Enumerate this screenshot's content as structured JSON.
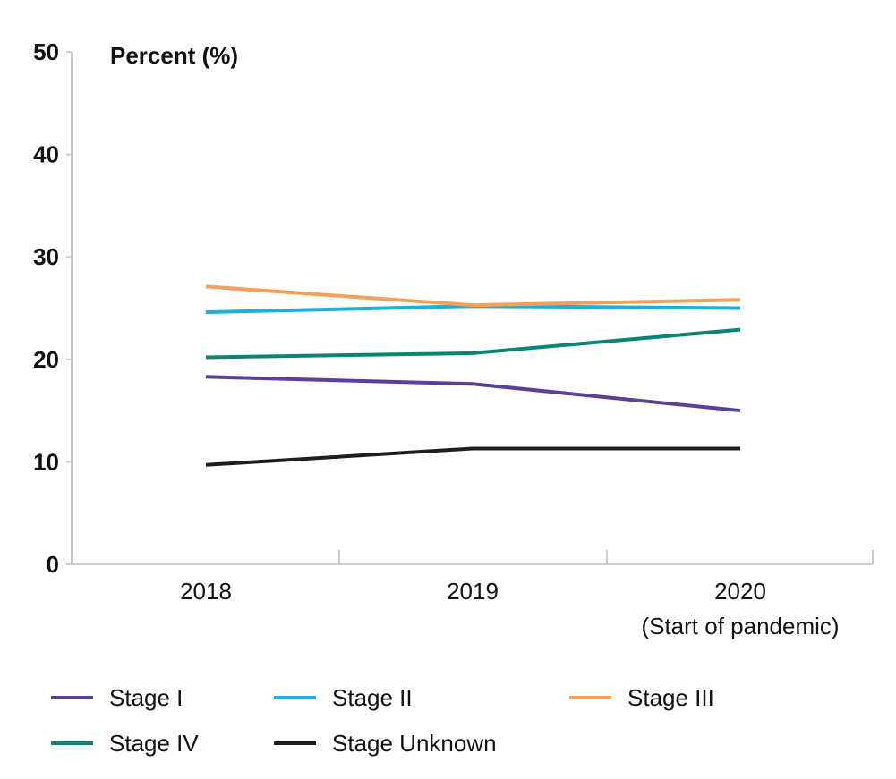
{
  "chart_data": {
    "type": "line",
    "ylabel": "Percent (%)",
    "ylim": [
      0,
      50
    ],
    "yticks": [
      "0",
      "10",
      "20",
      "30",
      "40",
      "50"
    ],
    "categories": [
      "2018",
      "2019",
      "2020"
    ],
    "category_notes": [
      "",
      "",
      "(Start of pandemic)"
    ],
    "grid": false,
    "legend_position": "bottom",
    "series": [
      {
        "name": "Stage I",
        "color": "#5b3f99",
        "values": [
          18.3,
          17.6,
          15.0
        ]
      },
      {
        "name": "Stage II",
        "color": "#1ab0d8",
        "values": [
          24.6,
          25.2,
          25.0
        ]
      },
      {
        "name": "Stage III",
        "color": "#f4a05c",
        "values": [
          27.1,
          25.3,
          25.8
        ]
      },
      {
        "name": "Stage IV",
        "color": "#0a8377",
        "values": [
          20.2,
          20.6,
          22.9
        ]
      },
      {
        "name": "Stage Unknown",
        "color": "#1e1e1e",
        "values": [
          9.7,
          11.3,
          11.3
        ]
      }
    ]
  }
}
